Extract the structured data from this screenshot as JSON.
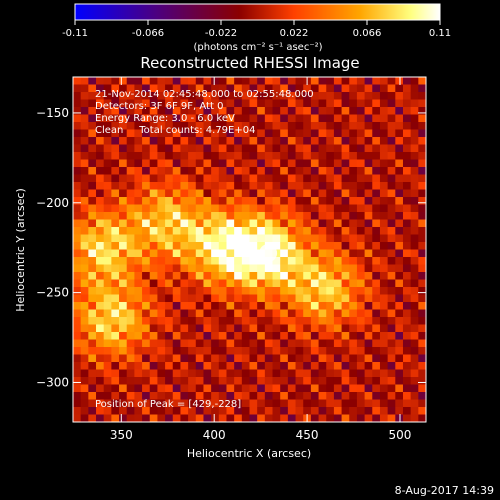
{
  "colorbar": {
    "ticks": [
      "-0.11",
      "-0.066",
      "-0.022",
      "0.022",
      "0.066",
      "0.11"
    ],
    "tick_values": [
      -0.11,
      -0.066,
      -0.022,
      0.022,
      0.066,
      0.11
    ],
    "range": [
      -0.11,
      0.11
    ],
    "units": "(photons cm⁻² s⁻¹ asec⁻²)",
    "colors": [
      "#0000ff",
      "#4b0082",
      "#8b0000",
      "#ff4000",
      "#ffa500",
      "#ffff80",
      "#ffffff"
    ]
  },
  "footer": {
    "timestamp": "8-Aug-2017 14:39"
  },
  "chart_data": {
    "type": "heatmap",
    "title": "Reconstructed RHESSI Image",
    "xlabel": "Heliocentric X (arcsec)",
    "ylabel": "Heliocentric Y (arcsec)",
    "xlim": [
      324,
      514
    ],
    "ylim": [
      -322,
      -130
    ],
    "xticks": [
      350,
      400,
      450,
      500
    ],
    "yticks": [
      -150,
      -200,
      -250,
      -300
    ],
    "colormap": "rhessi-standard",
    "value_range": [
      -0.11,
      0.11
    ],
    "peak_value": 0.11,
    "peak": {
      "x": 429,
      "y": -228
    },
    "bright_regions": [
      {
        "x": 429,
        "y": -228,
        "relative_intensity": 1.0
      },
      {
        "x": 405,
        "y": -225,
        "relative_intensity": 0.85
      },
      {
        "x": 340,
        "y": -225,
        "relative_intensity": 0.8
      },
      {
        "x": 345,
        "y": -265,
        "relative_intensity": 0.8
      },
      {
        "x": 460,
        "y": -248,
        "relative_intensity": 0.75
      },
      {
        "x": 375,
        "y": -210,
        "relative_intensity": 0.7
      }
    ],
    "annotations": [
      "21-Nov-2014 02:45:48.000 to 02:55:48.000",
      "Detectors: 3F 6F 9F, Att 0",
      "Energy Range: 3.0 - 6.0 keV",
      "Clean     Total counts: 4.79E+04",
      "Position of Peak = [429,-228]"
    ]
  }
}
